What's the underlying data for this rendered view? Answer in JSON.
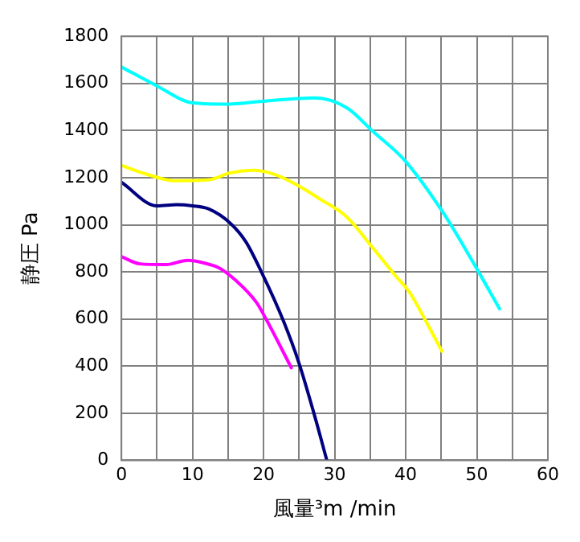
{
  "chart_data": {
    "type": "line",
    "xlabel": "風量³m /min",
    "ylabel": "静圧 Pa",
    "xlim": [
      0,
      60
    ],
    "ylim": [
      0,
      1800
    ],
    "xticks": [
      0,
      {
        "value": 5,
        "label": null
      },
      10,
      {
        "value": 15,
        "label": null
      },
      20,
      {
        "value": 25,
        "label": null
      },
      30,
      {
        "value": 35,
        "label": null
      },
      40,
      {
        "value": 45,
        "label": null
      },
      50,
      {
        "value": 55,
        "label": null
      },
      60
    ],
    "yticks": [
      0,
      200,
      400,
      600,
      800,
      1000,
      1200,
      1400,
      1600,
      1800
    ],
    "grid": true,
    "marker": "none",
    "line_style": "solid",
    "series": [
      {
        "color": "#000080",
        "x": [
          0,
          5,
          7.8,
          10,
          12.3,
          15.3,
          17.5,
          19.8,
          22.8,
          25,
          27.2,
          28.9
        ],
        "values": [
          1180,
          1080,
          1085,
          1080,
          1067,
          1007,
          928,
          793,
          591,
          411,
          187,
          0
        ]
      },
      {
        "color": "#ff00ff",
        "x": [
          0,
          2.6,
          6.3,
          9.3,
          11.6,
          13.8,
          16,
          19,
          20.5,
          23.9
        ],
        "values": [
          865,
          834,
          831,
          849,
          838,
          816,
          766,
          670,
          591,
          393
        ]
      },
      {
        "color": "#ffff00",
        "x": [
          0,
          3.4,
          7.5,
          12.3,
          15.3,
          18.7,
          22,
          25,
          28,
          31.6,
          35.4,
          38.4,
          40.6,
          42.9,
          45.1
        ],
        "values": [
          1252,
          1216,
          1187,
          1191,
          1220,
          1231,
          1209,
          1164,
          1108,
          1036,
          901,
          789,
          710,
          587,
          463
        ]
      },
      {
        "color": "#00ffff",
        "x": [
          0,
          4.9,
          10.1,
          14.6,
          19.8,
          27.2,
          31.7,
          35.4,
          39.9,
          45.1,
          49.6,
          53.2
        ],
        "values": [
          1670,
          1591,
          1517,
          1512,
          1524,
          1539,
          1497,
          1396,
          1272,
          1059,
          834,
          643
        ]
      }
    ]
  }
}
